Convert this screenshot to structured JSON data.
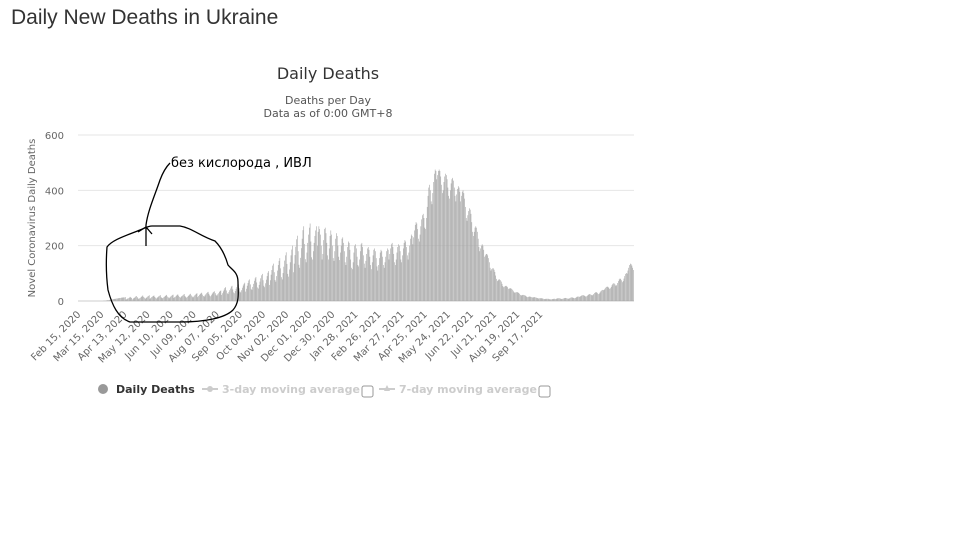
{
  "page": {
    "heading": "Daily New Deaths in Ukraine"
  },
  "chart_data": {
    "type": "bar",
    "title": "Daily Deaths",
    "subtitle": "Deaths per Day",
    "subtitle2": "Data as of 0:00 GMT+8",
    "xlabel": "",
    "ylabel": "Novel Coronavirus Daily Deaths",
    "ylim": [
      0,
      600
    ],
    "yticks": [
      0,
      200,
      400,
      600
    ],
    "xticks": [
      "Feb 15, 2020",
      "Mar 15, 2020",
      "Apr 13, 2020",
      "May 12, 2020",
      "Jun 10, 2020",
      "Jul 09, 2020",
      "Aug 07, 2020",
      "Sep 05, 2020",
      "Oct 04, 2020",
      "Nov 02, 2020",
      "Dec 01, 2020",
      "Dec 30, 2020",
      "Jan 28, 2021",
      "Feb 26, 2021",
      "Mar 27, 2021",
      "Apr 25, 2021",
      "May 24, 2021",
      "Jun 22, 2021",
      "Jul 21, 2021",
      "Aug 19, 2021",
      "Sep 17, 2021"
    ],
    "x_start": "2020-02-15",
    "grid": true,
    "bar_color": "#a6a6a6",
    "series": [
      {
        "name": "Daily Deaths",
        "values": [
          0,
          0,
          0,
          0,
          0,
          0,
          0,
          0,
          0,
          0,
          0,
          0,
          0,
          0,
          0,
          0,
          0,
          0,
          0,
          0,
          0,
          0,
          0,
          0,
          0,
          0,
          0,
          0,
          0,
          0,
          0,
          0,
          1,
          1,
          1,
          2,
          2,
          3,
          3,
          4,
          4,
          5,
          6,
          6,
          7,
          7,
          8,
          8,
          9,
          9,
          10,
          10,
          11,
          11,
          12,
          12,
          13,
          13,
          13,
          14,
          5,
          7,
          9,
          10,
          12,
          15,
          13,
          11,
          6,
          9,
          11,
          13,
          16,
          18,
          14,
          10,
          7,
          10,
          12,
          15,
          17,
          20,
          15,
          12,
          8,
          11,
          13,
          16,
          18,
          21,
          8,
          11,
          14,
          16,
          18,
          20,
          15,
          12,
          9,
          12,
          14,
          17,
          19,
          21,
          14,
          11,
          10,
          13,
          15,
          18,
          20,
          22,
          16,
          13,
          10,
          13,
          16,
          19,
          21,
          23,
          11,
          14,
          16,
          19,
          22,
          24,
          19,
          15,
          12,
          15,
          18,
          20,
          23,
          25,
          18,
          14,
          12,
          15,
          18,
          21,
          24,
          26,
          20,
          16,
          13,
          16,
          20,
          23,
          26,
          28,
          14,
          18,
          22,
          25,
          28,
          30,
          23,
          18,
          16,
          20,
          24,
          28,
          31,
          33,
          26,
          20,
          17,
          21,
          26,
          30,
          33,
          35,
          28,
          22,
          19,
          24,
          28,
          33,
          36,
          38,
          22,
          28,
          35,
          41,
          47,
          50,
          38,
          28,
          25,
          32,
          39,
          45,
          52,
          55,
          42,
          31,
          28,
          36,
          44,
          50,
          57,
          61,
          46,
          34,
          31,
          39,
          48,
          56,
          62,
          66,
          34,
          44,
          55,
          65,
          74,
          78,
          60,
          44,
          40,
          51,
          62,
          73,
          82,
          87,
          67,
          49,
          45,
          58,
          70,
          82,
          93,
          98,
          75,
          55,
          50,
          64,
          77,
          90,
          102,
          108,
          58,
          75,
          95,
          112,
          128,
          135,
          104,
          76,
          70,
          90,
          110,
          130,
          145,
          155,
          118,
          86,
          78,
          101,
          124,
          146,
          165,
          176,
          134,
          98,
          88,
          114,
          140,
          165,
          186,
          200,
          104,
          135,
          166,
          196,
          223,
          236,
          180,
          131,
          120,
          156,
          191,
          225,
          256,
          270,
          206,
          151,
          140,
          175,
          210,
          240,
          265,
          280,
          215,
          158,
          150,
          180,
          210,
          235,
          255,
          270,
          200,
          250,
          270,
          260,
          240,
          200,
          150,
          170,
          220,
          260,
          265,
          245,
          210,
          165,
          150,
          190,
          235,
          255,
          240,
          200,
          155,
          145,
          180,
          225,
          245,
          235,
          200,
          160,
          148,
          175,
          200,
          225,
          230,
          210,
          180,
          140,
          130,
          160,
          195,
          215,
          210,
          185,
          150,
          120,
          115,
          140,
          175,
          200,
          205,
          190,
          160,
          130,
          125,
          150,
          180,
          205,
          210,
          195,
          165,
          135,
          120,
          145,
          170,
          190,
          195,
          185,
          160,
          130,
          115,
          140,
          165,
          185,
          190,
          180,
          155,
          125,
          110,
          130,
          155,
          175,
          185,
          180,
          160,
          130,
          120,
          140,
          160,
          180,
          190,
          185,
          150,
          170,
          190,
          205,
          210,
          195,
          170,
          140,
          130,
          150,
          175,
          195,
          205,
          200,
          180,
          150,
          140,
          165,
          190,
          210,
          220,
          215,
          195,
          165,
          150,
          175,
          200,
          225,
          240,
          235,
          205,
          230,
          255,
          275,
          285,
          280,
          260,
          225,
          215,
          240,
          270,
          295,
          310,
          315,
          300,
          265,
          260,
          300,
          340,
          380,
          410,
          420,
          400,
          360,
          350,
          390,
          430,
          460,
          475,
          470,
          440,
          455,
          470,
          475,
          470,
          450,
          420,
          390,
          400,
          430,
          450,
          460,
          455,
          440,
          410,
          380,
          370,
          400,
          425,
          440,
          445,
          435,
          410,
          380,
          360,
          385,
          405,
          415,
          410,
          395,
          360,
          380,
          395,
          400,
          390,
          370,
          340,
          300,
          290,
          310,
          325,
          335,
          330,
          315,
          285,
          250,
          235,
          250,
          265,
          270,
          265,
          250,
          225,
          195,
          180,
          190,
          200,
          205,
          200,
          185,
          160,
          165,
          170,
          170,
          165,
          155,
          140,
          120,
          110,
          115,
          118,
          118,
          113,
          105,
          92,
          80,
          72,
          75,
          78,
          78,
          75,
          70,
          62,
          54,
          50,
          52,
          54,
          55,
          53,
          50,
          44,
          45,
          46,
          46,
          44,
          41,
          37,
          32,
          30,
          31,
          32,
          32,
          31,
          29,
          26,
          22,
          20,
          21,
          22,
          22,
          21,
          20,
          18,
          15,
          14,
          15,
          16,
          16,
          15,
          14,
          13,
          13,
          14,
          14,
          13,
          12,
          11,
          10,
          9,
          10,
          10,
          10,
          10,
          9,
          8,
          7,
          7,
          8,
          8,
          8,
          8,
          7,
          6,
          6,
          6,
          7,
          7,
          8,
          8,
          7,
          8,
          9,
          10,
          10,
          10,
          9,
          8,
          7,
          8,
          9,
          10,
          11,
          11,
          10,
          9,
          8,
          9,
          10,
          12,
          13,
          13,
          12,
          11,
          10,
          11,
          13,
          15,
          16,
          16,
          15,
          16,
          18,
          20,
          21,
          21,
          20,
          18,
          16,
          17,
          19,
          22,
          24,
          25,
          24,
          22,
          20,
          22,
          25,
          29,
          31,
          32,
          31,
          28,
          25,
          27,
          31,
          35,
          38,
          40,
          39,
          40,
          44,
          48,
          51,
          52,
          51,
          48,
          44,
          46,
          51,
          57,
          62,
          64,
          63,
          59,
          54,
          58,
          65,
          72,
          78,
          81,
          80,
          75,
          68,
          72,
          81,
          90,
          98,
          101,
          99,
          110,
          120,
          130,
          135,
          133,
          128,
          120,
          112
        ]
      }
    ],
    "legend": {
      "items": [
        {
          "label": "Daily Deaths",
          "active": true
        },
        {
          "label": "3-day moving average",
          "active": false
        },
        {
          "label": "7-day moving average",
          "active": false
        }
      ]
    },
    "annotation": {
      "text": "без кислорода , ИВЛ"
    }
  }
}
